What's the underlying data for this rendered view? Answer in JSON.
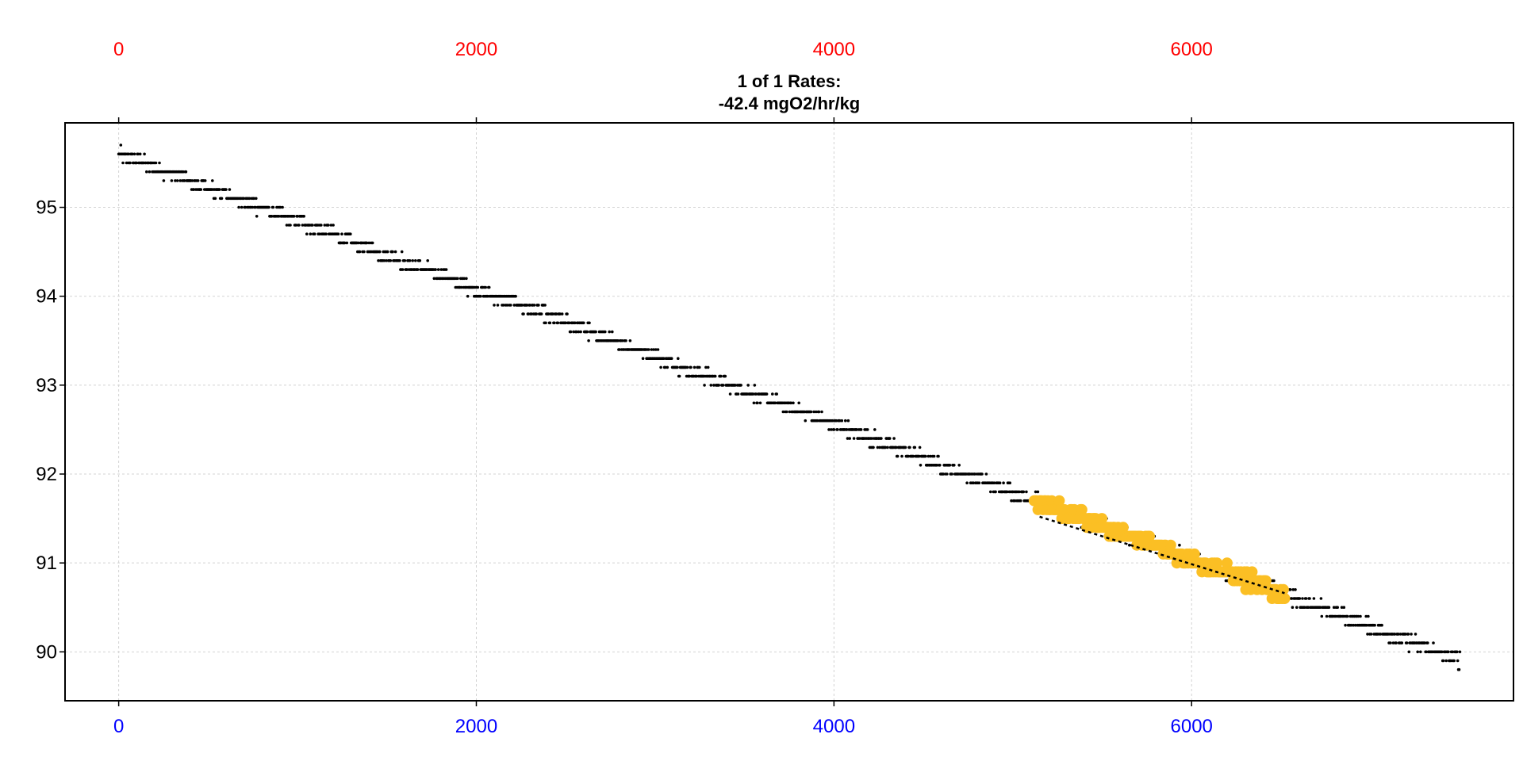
{
  "chart_data": {
    "type": "scatter",
    "title": "1 of 1 Rates:",
    "subtitle": "-42.4 mgO2/hr/kg",
    "xlabel": "",
    "ylabel": "",
    "xlim": [
      -300,
      7800
    ],
    "ylim": [
      89.45,
      95.95
    ],
    "x_ticks": [
      0,
      2000,
      4000,
      6000
    ],
    "x_tick_labels": [
      "0",
      "2000",
      "4000",
      "6000"
    ],
    "x_top_ticks": [
      0,
      2000,
      4000,
      6000
    ],
    "x_top_tick_labels": [
      "0",
      "2000",
      "4000",
      "6000"
    ],
    "y_ticks": [
      90,
      91,
      92,
      93,
      94,
      95
    ],
    "y_tick_labels": [
      "90",
      "91",
      "92",
      "93",
      "94",
      "95"
    ],
    "grid": true,
    "colors": {
      "top_axis": "#ff0000",
      "bottom_axis": "#0000ff",
      "points": "#000000",
      "highlight": "#fbbf24",
      "fit_line": "#000000",
      "grid": "#d3d3d3"
    },
    "series": [
      {
        "role": "all-observations",
        "trend": {
          "x_start": 0,
          "y_start": 95.6,
          "x_end": 7500,
          "y_end": 89.9
        },
        "step": 0.1,
        "x_range": [
          0,
          7500
        ]
      },
      {
        "role": "highlighted-subset",
        "x_range": [
          5120,
          6520
        ],
        "y_range": [
          90.5,
          91.7
        ]
      }
    ],
    "regression_line": {
      "x": [
        5150,
        6520
      ],
      "y": [
        91.52,
        90.66
      ],
      "rate": -42.4,
      "units": "mgO2/hr/kg"
    }
  }
}
